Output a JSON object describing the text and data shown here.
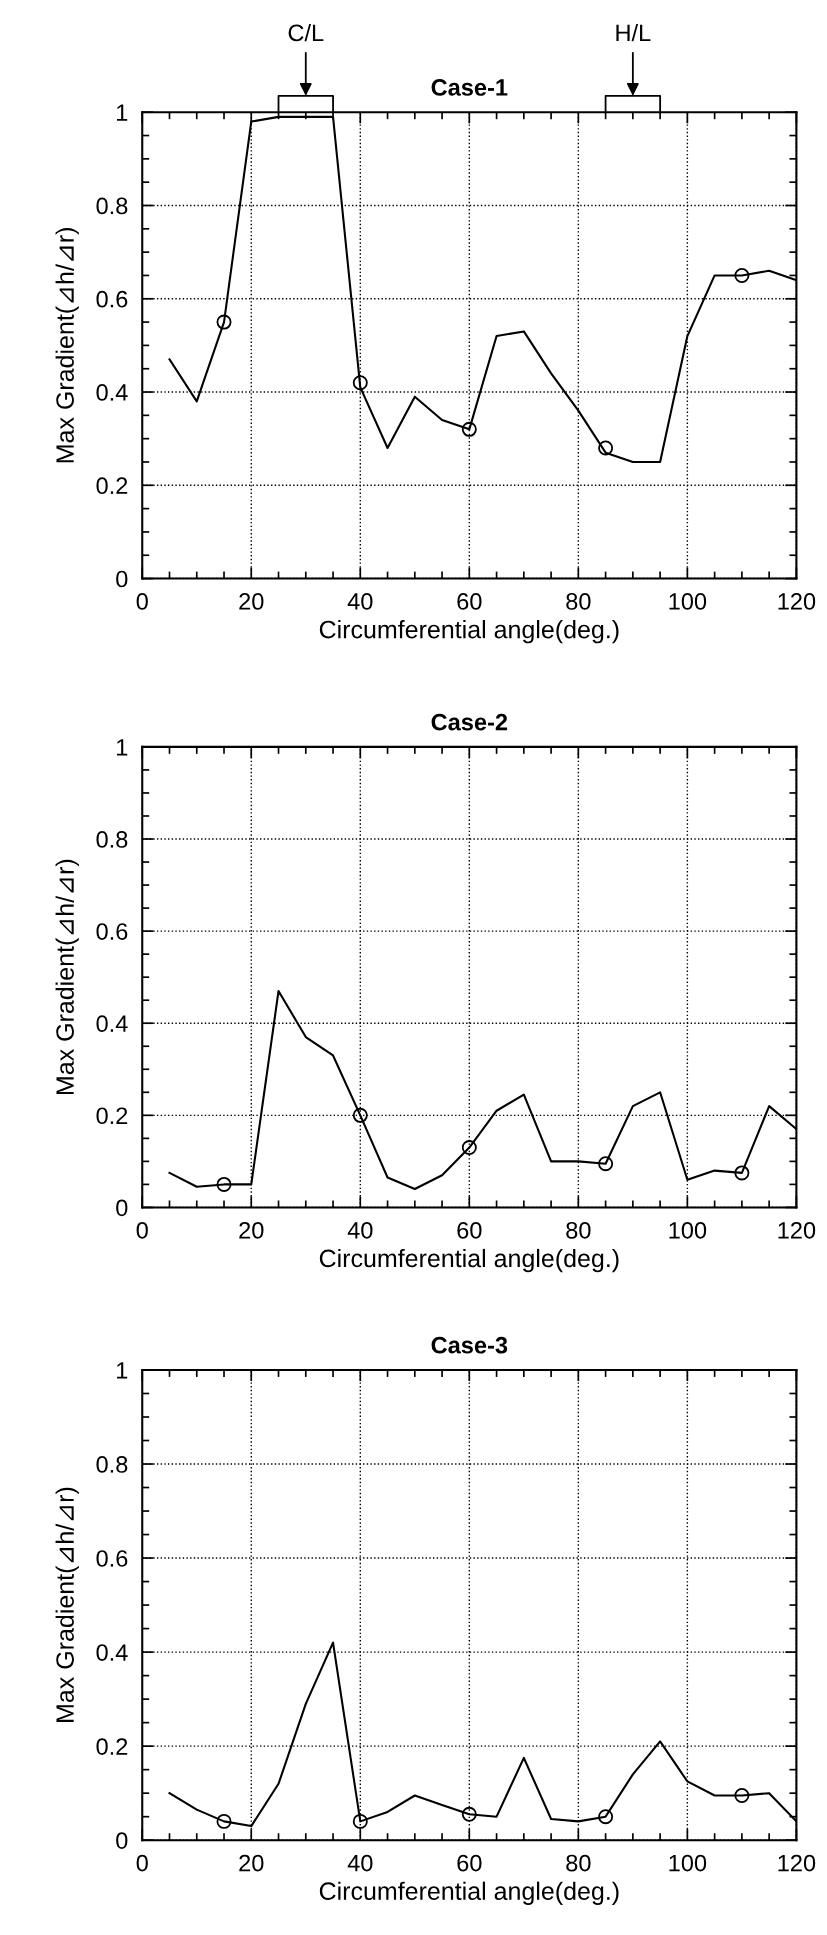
{
  "chart_data": [
    {
      "type": "line",
      "title": "Case-1",
      "xlabel": "Circumferential angle(deg.)",
      "ylabel": "Max Gradient(⊿h/⊿r)",
      "x": [
        5,
        10,
        15,
        20,
        25,
        30,
        35,
        40,
        45,
        50,
        55,
        60,
        65,
        70,
        75,
        80,
        85,
        90,
        95,
        100,
        105,
        110,
        115,
        120
      ],
      "series": [
        {
          "color": "#000000",
          "values": [
            0.47,
            0.38,
            0.55,
            0.98,
            0.99,
            0.99,
            0.99,
            0.41,
            0.28,
            0.39,
            0.34,
            0.32,
            0.52,
            0.53,
            0.44,
            0.36,
            0.27,
            0.25,
            0.25,
            0.52,
            0.65,
            0.65,
            0.66,
            0.64
          ]
        },
        {
          "type": "scatter",
          "color": "#000000",
          "marker": "circle",
          "x": [
            15,
            40,
            60,
            85,
            110
          ],
          "values": [
            0.55,
            0.42,
            0.32,
            0.28,
            0.65
          ]
        }
      ],
      "annotations": [
        "C/L",
        "H/L"
      ],
      "xlim": [
        0,
        120
      ],
      "xticks": [
        0,
        20,
        40,
        60,
        80,
        100,
        120
      ],
      "ylim": [
        0,
        1
      ],
      "yticks": [
        0,
        0.2,
        0.4,
        0.6,
        0.8,
        1
      ],
      "grid": true
    },
    {
      "type": "line",
      "title": "Case-2",
      "xlabel": "Circumferential angle(deg.)",
      "ylabel": "Max Gradient(⊿h/⊿r)",
      "x": [
        5,
        10,
        15,
        20,
        25,
        30,
        35,
        40,
        45,
        50,
        55,
        60,
        65,
        70,
        75,
        80,
        85,
        90,
        95,
        100,
        105,
        110,
        115,
        120
      ],
      "series": [
        {
          "color": "#000000",
          "values": [
            0.075,
            0.045,
            0.05,
            0.05,
            0.47,
            0.37,
            0.33,
            0.2,
            0.065,
            0.04,
            0.07,
            0.13,
            0.21,
            0.245,
            0.1,
            0.1,
            0.095,
            0.22,
            0.25,
            0.06,
            0.08,
            0.075,
            0.22,
            0.17
          ]
        },
        {
          "type": "scatter",
          "color": "#000000",
          "marker": "circle",
          "x": [
            15,
            40,
            60,
            85,
            110
          ],
          "values": [
            0.05,
            0.2,
            0.13,
            0.095,
            0.075
          ]
        }
      ],
      "xlim": [
        0,
        120
      ],
      "xticks": [
        0,
        20,
        40,
        60,
        80,
        100,
        120
      ],
      "ylim": [
        0,
        1
      ],
      "yticks": [
        0,
        0.2,
        0.4,
        0.6,
        0.8,
        1
      ],
      "grid": true
    },
    {
      "type": "line",
      "title": "Case-3",
      "xlabel": "Circumferential angle(deg.)",
      "ylabel": "Max Gradient(⊿h/⊿r)",
      "x": [
        5,
        10,
        15,
        20,
        25,
        30,
        35,
        40,
        45,
        50,
        55,
        60,
        65,
        70,
        75,
        80,
        85,
        90,
        95,
        100,
        105,
        110,
        115,
        120
      ],
      "series": [
        {
          "color": "#000000",
          "values": [
            0.1,
            0.065,
            0.04,
            0.03,
            0.12,
            0.29,
            0.42,
            0.04,
            0.06,
            0.095,
            0.075,
            0.055,
            0.05,
            0.175,
            0.045,
            0.04,
            0.05,
            0.14,
            0.21,
            0.125,
            0.095,
            0.095,
            0.1,
            0.04
          ]
        },
        {
          "type": "scatter",
          "color": "#000000",
          "marker": "circle",
          "x": [
            15,
            40,
            60,
            85,
            110
          ],
          "values": [
            0.04,
            0.04,
            0.055,
            0.05,
            0.095
          ]
        }
      ],
      "xlim": [
        0,
        120
      ],
      "xticks": [
        0,
        20,
        40,
        60,
        80,
        100,
        120
      ],
      "ylim": [
        0,
        1
      ],
      "yticks": [
        0,
        0.2,
        0.4,
        0.6,
        0.8,
        1
      ],
      "grid": true
    }
  ]
}
